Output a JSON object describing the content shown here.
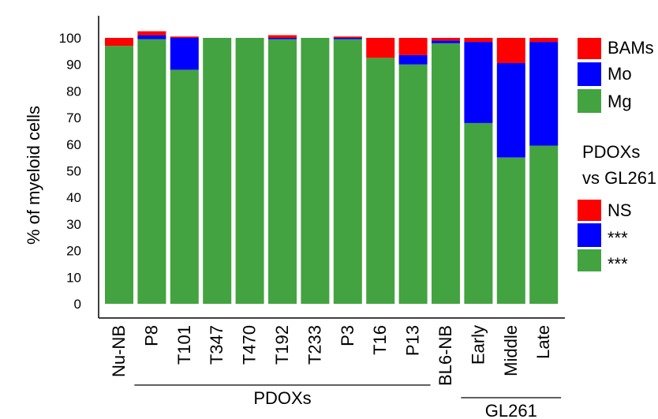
{
  "chart_data": {
    "type": "bar",
    "stacked": true,
    "ylabel": "% of myeloid cells",
    "ylim": [
      0,
      100
    ],
    "yticks": [
      "0",
      "10",
      "20",
      "30",
      "40",
      "50",
      "60",
      "70",
      "80",
      "90",
      "100"
    ],
    "categories": [
      "Nu-NB",
      "P8",
      "T101",
      "T347",
      "T470",
      "T192",
      "T233",
      "P3",
      "T16",
      "P13",
      "BL6-NB",
      "Early",
      "Middle",
      "Late"
    ],
    "series": [
      {
        "name": "Mg",
        "color": "#43a340",
        "values": [
          97,
          99.5,
          88,
          100,
          100,
          99.5,
          100,
          99.5,
          92.5,
          90,
          98,
          68,
          55,
          59.5
        ]
      },
      {
        "name": "Mo",
        "color": "#0000ff",
        "values": [
          0,
          1.5,
          12,
          0,
          0,
          0.5,
          0,
          0.5,
          0,
          3.5,
          1,
          30.5,
          35.5,
          39
        ]
      },
      {
        "name": "BAMs",
        "color": "#ff0000",
        "values": [
          3,
          1.5,
          0.5,
          0,
          0,
          1,
          0,
          0.5,
          7.5,
          6.5,
          1,
          1.5,
          9.5,
          1.5
        ]
      }
    ],
    "group_labels": [
      {
        "text": "PDOXs",
        "from": 1,
        "to": 9
      },
      {
        "text": "GL261",
        "from": 11,
        "to": 13
      }
    ],
    "legend": {
      "items": [
        {
          "label": "BAMs",
          "color": "#ff0000"
        },
        {
          "label": "Mo",
          "color": "#0000ff"
        },
        {
          "label": "Mg",
          "color": "#43a340"
        }
      ],
      "stats_title_line1": "PDOXs",
      "stats_title_line2": "vs GL261",
      "stats_items": [
        {
          "label": "NS",
          "color": "#ff0000"
        },
        {
          "label": "***",
          "color": "#0000ff"
        },
        {
          "label": "***",
          "color": "#43a340"
        }
      ]
    }
  }
}
